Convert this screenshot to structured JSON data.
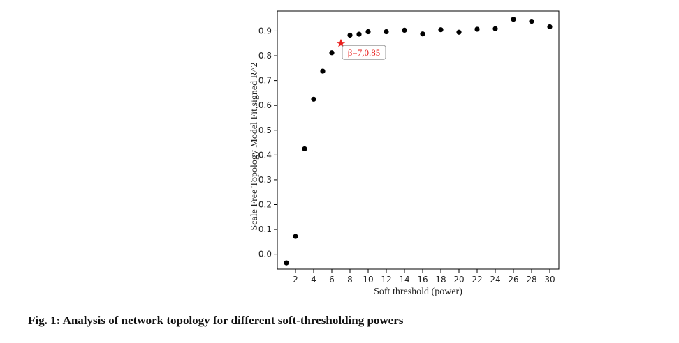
{
  "chart_data": {
    "type": "scatter",
    "xlabel": "Soft threshold (power)",
    "ylabel": "Scale Free Topology Model Fit,signed R^2",
    "xlim": [
      0,
      31
    ],
    "ylim": [
      -0.06,
      0.98
    ],
    "xticks": [
      2,
      4,
      6,
      8,
      10,
      12,
      14,
      16,
      18,
      20,
      22,
      24,
      26,
      28,
      30
    ],
    "yticks": [
      0.0,
      0.1,
      0.2,
      0.3,
      0.4,
      0.5,
      0.6,
      0.7,
      0.8,
      0.9
    ],
    "x": [
      1,
      2,
      3,
      4,
      5,
      6,
      8,
      9,
      10,
      12,
      14,
      16,
      18,
      20,
      22,
      24,
      26,
      28,
      30
    ],
    "y": [
      -0.035,
      0.072,
      0.425,
      0.625,
      0.738,
      0.812,
      0.883,
      0.887,
      0.897,
      0.897,
      0.903,
      0.888,
      0.905,
      0.895,
      0.907,
      0.909,
      0.947,
      0.939,
      0.917
    ],
    "highlight": {
      "x": 7,
      "y": 0.85,
      "label": "β=7,0.85",
      "color": "#e8201e"
    },
    "point_color": "#000000",
    "grid": false
  },
  "caption": "Fig. 1: Analysis of network topology for different soft-thresholding powers"
}
